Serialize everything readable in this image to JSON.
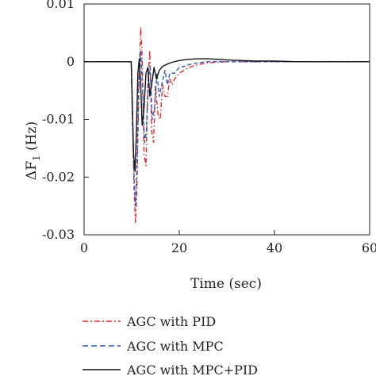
{
  "chart_data": {
    "type": "line",
    "xlabel": "Time (sec)",
    "ylabel": "ΔF",
    "ylabel_subscript": "1",
    "ylabel_unit": " (Hz)",
    "xlim": [
      0,
      60
    ],
    "ylim": [
      -0.03,
      0.01
    ],
    "x_ticks": [
      {
        "value": 0,
        "label": "0"
      },
      {
        "value": 20,
        "label": "20"
      },
      {
        "value": 40,
        "label": "40"
      },
      {
        "value": 60,
        "label": "60"
      }
    ],
    "y_ticks": [
      {
        "value": 0.01,
        "label": "0.01"
      },
      {
        "value": 0,
        "label": "0"
      },
      {
        "value": -0.01,
        "label": "-0.01"
      },
      {
        "value": -0.02,
        "label": "-0.02"
      },
      {
        "value": -0.03,
        "label": "-0.03"
      }
    ],
    "grid": false,
    "legend_position": "bottom",
    "series": [
      {
        "name": "AGC with PID",
        "color": "#e0282d",
        "dash": "dashdot",
        "x": [
          0,
          9.9,
          10.1,
          10.5,
          10.8,
          11.1,
          11.5,
          11.9,
          12.2,
          12.6,
          13.0,
          13.4,
          13.8,
          14.2,
          14.6,
          15.0,
          15.5,
          16.0,
          16.5,
          17.0,
          17.5,
          18.0,
          18.5,
          19.0,
          20.0,
          21.0,
          22.0,
          24.0,
          26.0,
          28.0,
          30.0,
          35.0,
          40.0,
          50.0,
          60.0
        ],
        "y": [
          0,
          0,
          -0.008,
          -0.022,
          -0.028,
          -0.022,
          -0.005,
          0.006,
          0.001,
          -0.016,
          -0.018,
          -0.004,
          0.002,
          -0.012,
          -0.014,
          -0.004,
          -0.009,
          -0.01,
          -0.004,
          -0.006,
          -0.006,
          -0.003,
          -0.004,
          -0.003,
          -0.002,
          -0.0015,
          -0.001,
          -0.0005,
          -0.0002,
          -0.0001,
          0.0,
          0.0,
          0.0,
          0.0,
          0.0
        ]
      },
      {
        "name": "AGC with MPC",
        "color": "#2f56b5",
        "dash": "dashed",
        "x": [
          0,
          9.9,
          10.1,
          10.5,
          10.8,
          11.1,
          11.5,
          11.9,
          12.3,
          12.7,
          13.1,
          13.5,
          13.9,
          14.3,
          14.8,
          15.3,
          15.8,
          16.3,
          17.0,
          17.5,
          18.0,
          19.0,
          20.0,
          21.0,
          22.0,
          24.0,
          26.0,
          28.0,
          30.0,
          35.0,
          40.0,
          50.0,
          60.0
        ],
        "y": [
          0,
          0,
          -0.007,
          -0.02,
          -0.025,
          -0.018,
          -0.004,
          0.002,
          -0.005,
          -0.014,
          -0.012,
          -0.003,
          -0.001,
          -0.01,
          -0.008,
          -0.002,
          -0.006,
          -0.004,
          -0.0015,
          -0.004,
          -0.002,
          -0.002,
          -0.001,
          -0.0008,
          -0.0005,
          -0.0002,
          0.0,
          0.0,
          0.0,
          0.0,
          0.0,
          0.0,
          0.0
        ]
      },
      {
        "name": "AGC with MPC+PID",
        "color": "#111111",
        "dash": "solid",
        "x": [
          0,
          9.9,
          10.1,
          10.4,
          10.7,
          11.0,
          11.3,
          11.6,
          11.9,
          12.2,
          12.6,
          13.0,
          13.4,
          13.8,
          14.2,
          14.7,
          15.2,
          15.8,
          16.5,
          17.5,
          18.5,
          20.0,
          22.0,
          24.0,
          26.0,
          28.0,
          30.0,
          33.0,
          36.0,
          40.0,
          45.0,
          50.0,
          60.0
        ],
        "y": [
          0,
          0,
          -0.006,
          -0.016,
          -0.019,
          -0.012,
          -0.002,
          0.0005,
          -0.004,
          -0.011,
          -0.008,
          -0.002,
          -0.001,
          -0.006,
          -0.004,
          -0.001,
          -0.003,
          -0.0015,
          -0.0008,
          -0.0004,
          -0.0001,
          0.0002,
          0.0004,
          0.0005,
          0.0005,
          0.0004,
          0.0003,
          0.0002,
          0.0001,
          0.0001,
          0.0,
          0.0,
          0.0
        ]
      }
    ]
  }
}
